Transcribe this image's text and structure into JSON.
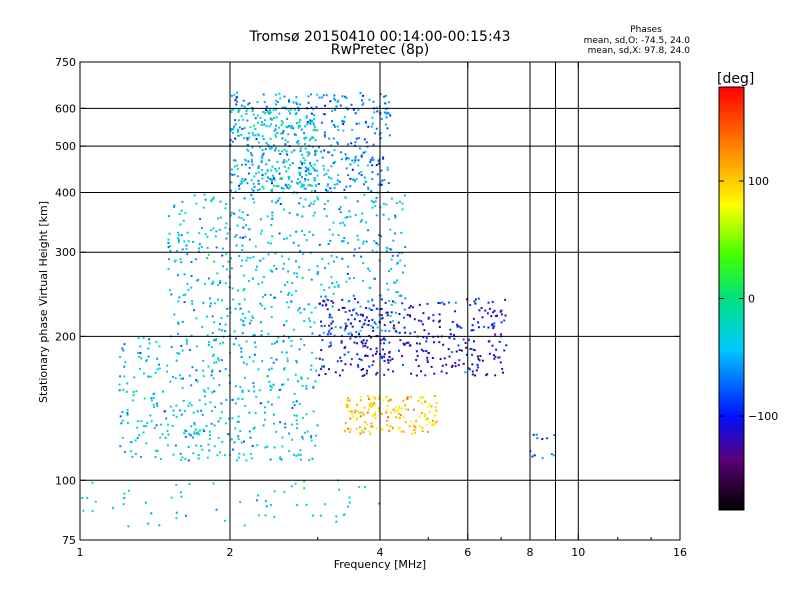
{
  "chart_data": {
    "type": "scatter",
    "title": "Tromsø 20150410 00:14:00-00:15:43",
    "subtitle": "RwPretec (8p)",
    "xlabel": "Frequency [MHz]",
    "ylabel": "Stationary phase Virtual Height [km]",
    "x_scale": "log",
    "y_scale": "log",
    "xlim": [
      1,
      16
    ],
    "ylim": [
      75,
      750
    ],
    "x_ticks": [
      1,
      2,
      4,
      6,
      8,
      10,
      16
    ],
    "x_tick_labels": [
      "1",
      "2",
      "4",
      "6",
      "8",
      "10",
      "16"
    ],
    "y_ticks": [
      75,
      100,
      200,
      300,
      400,
      500,
      600,
      750
    ],
    "y_tick_labels": [
      "75",
      "100",
      "200",
      "300",
      "400",
      "500",
      "600",
      "750"
    ],
    "grid": true,
    "grid_x": [
      2,
      4,
      6,
      8,
      9,
      10
    ],
    "grid_y": [
      100,
      200,
      300,
      400,
      500,
      600
    ],
    "stats": {
      "heading": "Phases",
      "line1": "mean, sd,O: -74.5, 24.0",
      "line2": "mean, sd,X:  97.8, 24.0"
    },
    "colorbar": {
      "label": "[deg]",
      "range": [
        -180,
        180
      ],
      "ticks": [
        100,
        0,
        -100
      ],
      "tick_labels": [
        "100",
        "0",
        "−100"
      ],
      "colormap": "rainbow",
      "placement": "right"
    },
    "point_clusters": [
      {
        "name": "F2 upper trace",
        "freq_range": [
          2.0,
          4.2
        ],
        "height_range": [
          400,
          650
        ],
        "phase": -60
      },
      {
        "name": "F2 upper trace (cyan)",
        "freq_range": [
          2.0,
          3.0
        ],
        "height_range": [
          400,
          600
        ],
        "phase": -30
      },
      {
        "name": "F2 cusp area",
        "freq_range": [
          1.5,
          4.5
        ],
        "height_range": [
          200,
          400
        ],
        "phase": -40
      },
      {
        "name": "F1 O-mode trace",
        "freq_range": [
          3.0,
          7.2
        ],
        "height_range": [
          165,
          240
        ],
        "phase": -110
      },
      {
        "name": "X-mode trace",
        "freq_range": [
          3.4,
          5.2
        ],
        "height_range": [
          125,
          150
        ],
        "phase": 100
      },
      {
        "name": "lower E/F trace",
        "freq_range": [
          1.2,
          3.0
        ],
        "height_range": [
          110,
          200
        ],
        "phase": -40
      },
      {
        "name": "E-layer echoes",
        "freq_range": [
          1.0,
          4.2
        ],
        "height_range": [
          80,
          100
        ],
        "phase": -30
      },
      {
        "name": "isolated high freq",
        "freq_range": [
          8.0,
          9.0
        ],
        "height_range": [
          110,
          125
        ],
        "phase": -80
      }
    ]
  }
}
